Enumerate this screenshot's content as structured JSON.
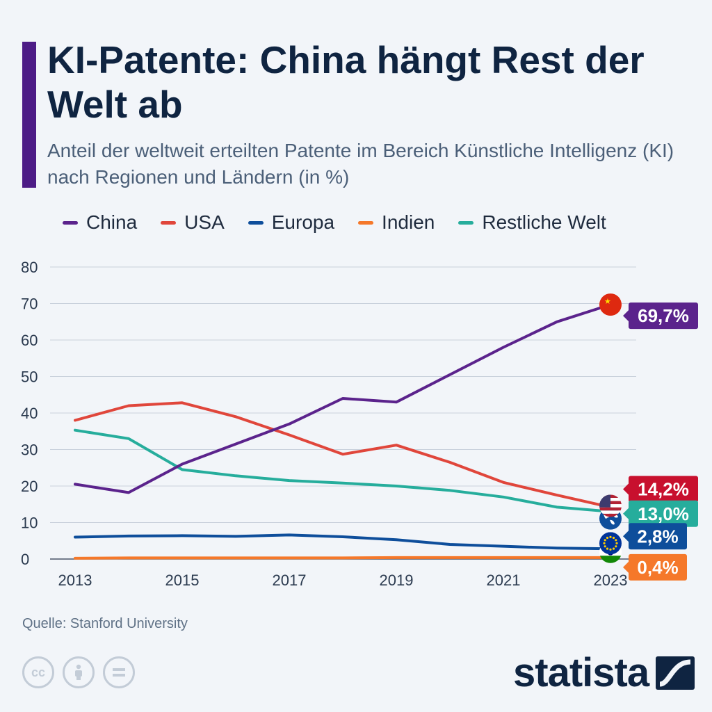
{
  "header": {
    "title": "KI-Patente: China hängt Rest der Welt ab",
    "subtitle": "Anteil der weltweit erteilten Patente im Bereich Künstliche Intelligenz (KI) nach Regionen und Ländern (in %)"
  },
  "footer": {
    "source": "Quelle: Stanford University",
    "brand": "statista",
    "cc_icons": [
      "cc",
      "by",
      "nd"
    ]
  },
  "colors": {
    "accent": "#4d1c86",
    "china": "#5b238c",
    "usa": "#e0463b",
    "europa": "#0e4e9b",
    "indien": "#f5782a",
    "restliche_welt": "#26ad9c"
  },
  "chart_data": {
    "type": "line",
    "x": [
      2013,
      2014,
      2015,
      2016,
      2017,
      2018,
      2019,
      2020,
      2021,
      2022,
      2023
    ],
    "x_tick_labels": [
      "2013",
      "2015",
      "2017",
      "2019",
      "2021",
      "2023"
    ],
    "y_tick_labels": [
      "0",
      "10",
      "20",
      "30",
      "40",
      "50",
      "60",
      "70",
      "80"
    ],
    "ylim": [
      0,
      80
    ],
    "grid": true,
    "legend_position": "top",
    "series": [
      {
        "name": "China",
        "color": "#5b238c",
        "values": [
          20.5,
          18.2,
          26.0,
          31.5,
          37.0,
          44.0,
          43.0,
          50.5,
          58.0,
          65.0,
          69.7
        ],
        "end_label": "69,7%",
        "flag_icon": "china-flag-icon"
      },
      {
        "name": "USA",
        "color": "#e0463b",
        "values": [
          38.0,
          42.0,
          42.8,
          39.0,
          34.0,
          28.7,
          31.2,
          26.5,
          21.0,
          17.5,
          14.2
        ],
        "end_label": "14,2%",
        "flag_icon": "usa-flag-icon"
      },
      {
        "name": "Europa",
        "color": "#0e4e9b",
        "values": [
          6.0,
          6.3,
          6.4,
          6.2,
          6.6,
          6.1,
          5.3,
          4.0,
          3.5,
          3.0,
          2.8
        ],
        "end_label": "2,8%",
        "flag_icon": "eu-flag-icon"
      },
      {
        "name": "Indien",
        "color": "#f5782a",
        "values": [
          0.2,
          0.3,
          0.3,
          0.3,
          0.3,
          0.3,
          0.4,
          0.4,
          0.4,
          0.4,
          0.4
        ],
        "end_label": "0,4%",
        "flag_icon": "india-flag-icon"
      },
      {
        "name": "Restliche Welt",
        "color": "#26ad9c",
        "values": [
          35.3,
          33.0,
          24.5,
          22.8,
          21.5,
          20.8,
          20.0,
          18.8,
          17.0,
          14.2,
          13.0
        ],
        "end_label": "13,0%",
        "flag_icon": "globe-icon"
      }
    ]
  }
}
